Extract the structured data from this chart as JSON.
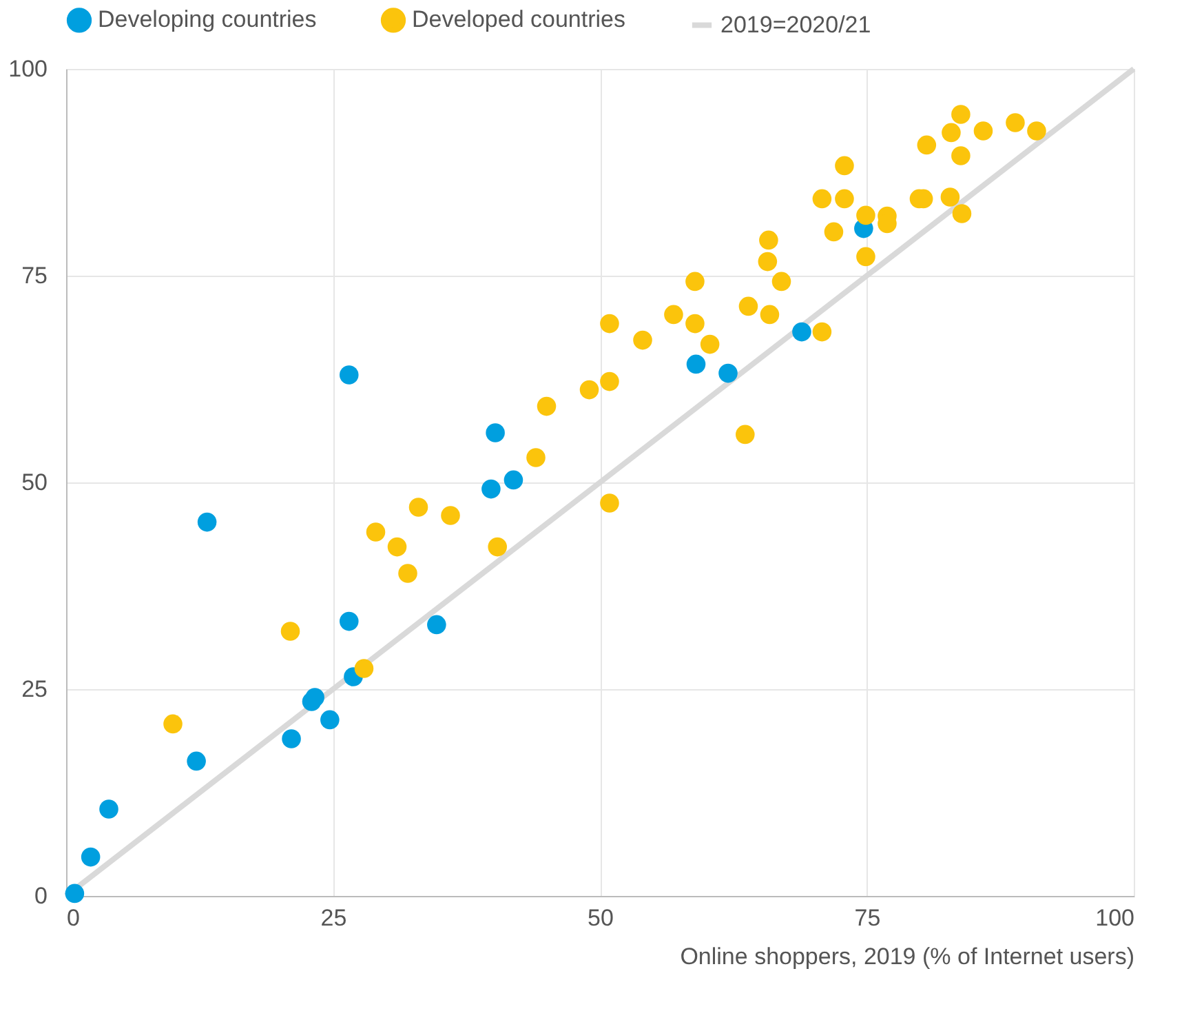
{
  "chart_data": {
    "type": "scatter",
    "xlabel": "Online shoppers, 2019 (% of Internet users)",
    "xlim": [
      0,
      100
    ],
    "ylim": [
      0,
      100
    ],
    "xticks": [
      0,
      25,
      50,
      75,
      100
    ],
    "yticks": [
      0,
      25,
      50,
      75,
      100
    ],
    "grid": true,
    "legend": "top",
    "marker": "circle",
    "series": [
      {
        "name": "Developing countries",
        "color": "#009fdf",
        "x": [
          0.8,
          2.3,
          4,
          12.2,
          13.2,
          21.1,
          23,
          23.3,
          24.7,
          26.5,
          26.5,
          26.9,
          34.7,
          39.8,
          40.2,
          41.9,
          59,
          62,
          68.9,
          74.7
        ],
        "values": [
          0.3,
          4.7,
          10.5,
          16.3,
          45.2,
          19,
          23.5,
          24,
          21.3,
          63,
          33.2,
          26.5,
          32.8,
          49.2,
          56,
          50.3,
          64.3,
          63.2,
          68.2,
          80.7
        ]
      },
      {
        "name": "Developed countries",
        "color": "#fbc40c",
        "x": [
          10,
          21,
          27.9,
          29,
          31,
          32,
          33,
          36,
          40.4,
          44,
          45,
          49,
          50.9,
          50.9,
          50.9,
          54,
          56.9,
          58.9,
          58.9,
          60.3,
          63.6,
          63.9,
          65.8,
          65.7,
          65.9,
          67,
          70.8,
          70.8,
          71.9,
          72.9,
          72.9,
          74.9,
          74.9,
          76.9,
          76.9,
          79.9,
          80.3,
          80.6,
          82.8,
          82.9,
          83.8,
          83.8,
          83.9,
          85.9,
          88.9,
          90.9
        ],
        "values": [
          20.8,
          32,
          27.5,
          44,
          42.2,
          39,
          47,
          46,
          42.2,
          53,
          59.2,
          61.2,
          62.2,
          69.2,
          47.5,
          67.2,
          70.3,
          74.3,
          69.2,
          66.7,
          55.8,
          71.3,
          79.3,
          76.7,
          70.3,
          74.3,
          84.3,
          68.2,
          80.3,
          88.3,
          84.3,
          82.3,
          77.3,
          82.2,
          81.3,
          84.3,
          84.3,
          90.8,
          84.5,
          92.3,
          94.5,
          89.5,
          82.5,
          92.5,
          93.5,
          92.5
        ]
      },
      {
        "name": "2019=2020/21",
        "type": "line",
        "marker": "none",
        "color": "#d9d9d9",
        "x": [
          0,
          100
        ],
        "values": [
          0,
          100
        ]
      }
    ]
  }
}
